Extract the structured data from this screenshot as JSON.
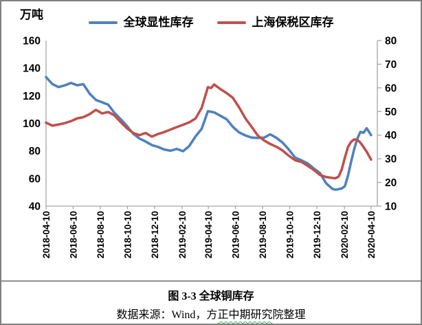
{
  "figure": {
    "unit_label": "万吨",
    "caption_title": "图 3-3 全球铜库存",
    "source_pre": "数据来源：Wind，方",
    "source_wavy": "正中期研究",
    "source_post": "院整理"
  },
  "chart_data": {
    "type": "line",
    "title": "图 3-3 全球铜库存",
    "grid": false,
    "legend_position": "top",
    "left_axis": {
      "label": "万吨",
      "min": 40,
      "max": 160,
      "step": 20
    },
    "right_axis": {
      "min": 10,
      "max": 80,
      "step": 10
    },
    "x_ticks": [
      "2018-04-10",
      "2018-06-10",
      "2018-08-10",
      "2018-10-10",
      "2018-12-10",
      "2019-02-10",
      "2019-04-10",
      "2019-06-10",
      "2019-08-10",
      "2019-10-10",
      "2019-12-10",
      "2020-02-10",
      "2020-04-10"
    ],
    "x": [
      "2018-04-10",
      "2018-04-24",
      "2018-05-08",
      "2018-05-22",
      "2018-06-05",
      "2018-06-19",
      "2018-07-03",
      "2018-07-17",
      "2018-07-31",
      "2018-08-14",
      "2018-08-28",
      "2018-09-11",
      "2018-09-25",
      "2018-10-09",
      "2018-10-23",
      "2018-11-06",
      "2018-11-20",
      "2018-12-04",
      "2018-12-18",
      "2019-01-01",
      "2019-01-15",
      "2019-01-29",
      "2019-02-12",
      "2019-02-26",
      "2019-03-12",
      "2019-03-26",
      "2019-04-09",
      "2019-04-16",
      "2019-04-23",
      "2019-05-07",
      "2019-05-21",
      "2019-06-04",
      "2019-06-18",
      "2019-07-02",
      "2019-07-16",
      "2019-07-30",
      "2019-08-13",
      "2019-08-27",
      "2019-09-10",
      "2019-09-24",
      "2019-10-08",
      "2019-10-22",
      "2019-11-05",
      "2019-11-19",
      "2019-12-03",
      "2019-12-17",
      "2019-12-31",
      "2020-01-14",
      "2020-01-21",
      "2020-01-28",
      "2020-02-04",
      "2020-02-11",
      "2020-02-18",
      "2020-02-25",
      "2020-03-03",
      "2020-03-10",
      "2020-03-17",
      "2020-03-24",
      "2020-03-31",
      "2020-04-10"
    ],
    "series": [
      {
        "name": "全球显性库存",
        "axis": "left",
        "color": "#4F81BD",
        "values": [
          133.5,
          128.5,
          126.3,
          127.5,
          129.3,
          127.6,
          128.4,
          121.5,
          117.0,
          115.3,
          113.5,
          107.5,
          103.0,
          98.0,
          92.5,
          89.0,
          86.8,
          84.2,
          82.9,
          81.0,
          80.2,
          81.5,
          79.8,
          83.5,
          90.5,
          96.0,
          108.8,
          108.4,
          107.9,
          105.5,
          103.0,
          97.5,
          93.5,
          91.3,
          89.7,
          89.4,
          89.6,
          92.1,
          89.5,
          86.0,
          81.0,
          75.2,
          73.2,
          71.0,
          67.3,
          64.0,
          56.5,
          52.5,
          51.9,
          52.3,
          52.8,
          54.5,
          62.0,
          72.0,
          81.5,
          89.0,
          93.8,
          93.2,
          96.4,
          91.5
        ]
      },
      {
        "name": "上海保税区库存",
        "axis": "right",
        "color": "#C0504D",
        "values": [
          45.3,
          44.0,
          44.5,
          45.1,
          45.9,
          47.1,
          47.6,
          48.9,
          50.7,
          49.2,
          49.8,
          48.3,
          45.5,
          42.9,
          40.9,
          40.0,
          40.9,
          39.4,
          40.5,
          41.3,
          42.4,
          43.4,
          44.4,
          45.4,
          47.0,
          51.5,
          60.3,
          59.9,
          61.4,
          59.5,
          57.8,
          55.8,
          51.8,
          47.2,
          43.6,
          39.9,
          37.8,
          36.3,
          35.1,
          33.5,
          31.3,
          29.4,
          28.7,
          27.1,
          25.3,
          23.2,
          22.3,
          21.9,
          21.8,
          22.5,
          25.5,
          30.5,
          35.0,
          37.2,
          38.2,
          38.0,
          36.8,
          35.0,
          33.0,
          29.7
        ]
      }
    ]
  }
}
